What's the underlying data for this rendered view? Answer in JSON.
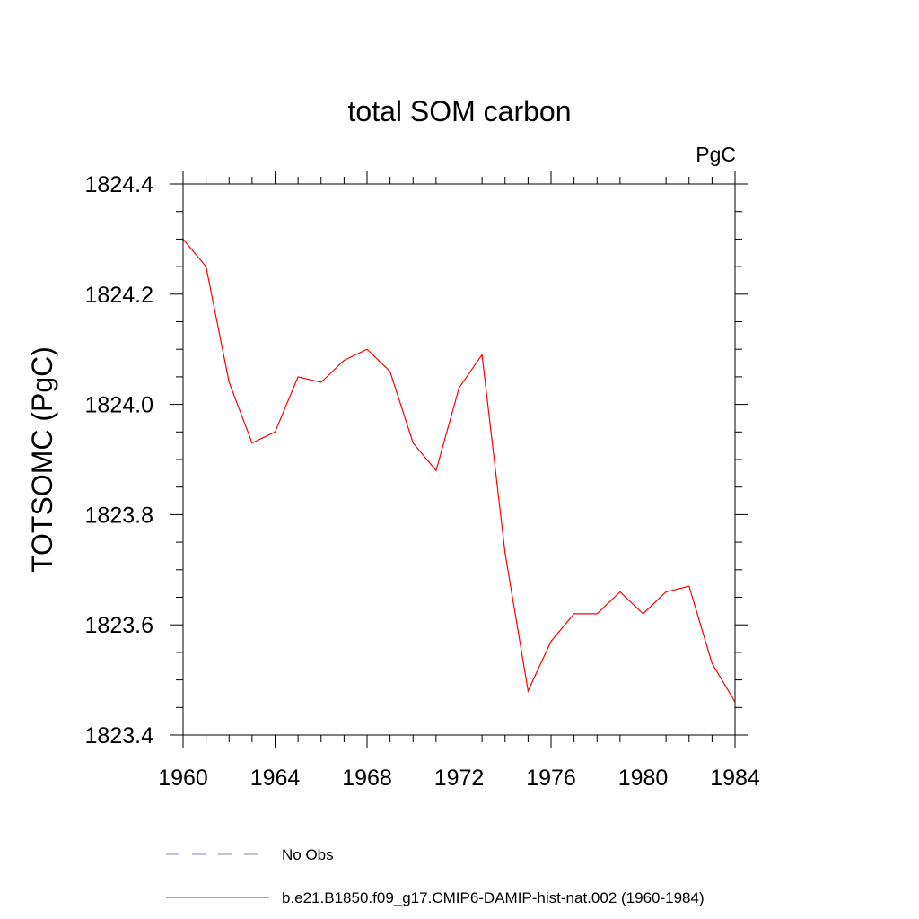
{
  "chart_data": {
    "type": "line",
    "title": "total SOM carbon",
    "units": "PgC",
    "ylabel": "TOTSOMC  (PgC)",
    "xlabel": "",
    "xlim": [
      1960,
      1984
    ],
    "ylim": [
      1823.4,
      1824.4
    ],
    "x_ticks": [
      1960,
      1964,
      1968,
      1972,
      1976,
      1980,
      1984
    ],
    "x_tick_labels": [
      "1960",
      "1964",
      "1968",
      "1972",
      "1976",
      "1980",
      "1984"
    ],
    "y_ticks": [
      1823.4,
      1823.6,
      1823.8,
      1824.0,
      1824.2,
      1824.4
    ],
    "y_tick_labels": [
      "1823.4",
      "1823.6",
      "1823.8",
      "1824.0",
      "1824.2",
      "1824.4"
    ],
    "x_minor_step": 1,
    "y_minor_step": 0.05,
    "grid": false,
    "legend_position": "bottom",
    "series": [
      {
        "name": "b.e21.B1850.f09_g17.CMIP6-DAMIP-hist-nat.002 (1960-1984)",
        "color": "#ff0000",
        "dash": "solid",
        "x": [
          1960,
          1961,
          1962,
          1963,
          1964,
          1965,
          1966,
          1967,
          1968,
          1969,
          1970,
          1971,
          1972,
          1973,
          1974,
          1975,
          1976,
          1977,
          1978,
          1979,
          1980,
          1981,
          1982,
          1983,
          1984
        ],
        "y": [
          1824.3,
          1824.25,
          1824.04,
          1823.93,
          1823.95,
          1824.05,
          1824.04,
          1824.08,
          1824.1,
          1824.06,
          1823.93,
          1823.88,
          1824.03,
          1824.09,
          1823.73,
          1823.48,
          1823.57,
          1823.62,
          1823.62,
          1823.66,
          1823.62,
          1823.66,
          1823.67,
          1823.53,
          1823.46
        ]
      }
    ],
    "legend": [
      {
        "label": "No Obs",
        "color": "#8080c0",
        "dash": "dashed"
      },
      {
        "label": "b.e21.B1850.f09_g17.CMIP6-DAMIP-hist-nat.002 (1960-1984)",
        "color": "#ff0000",
        "dash": "solid"
      }
    ]
  }
}
